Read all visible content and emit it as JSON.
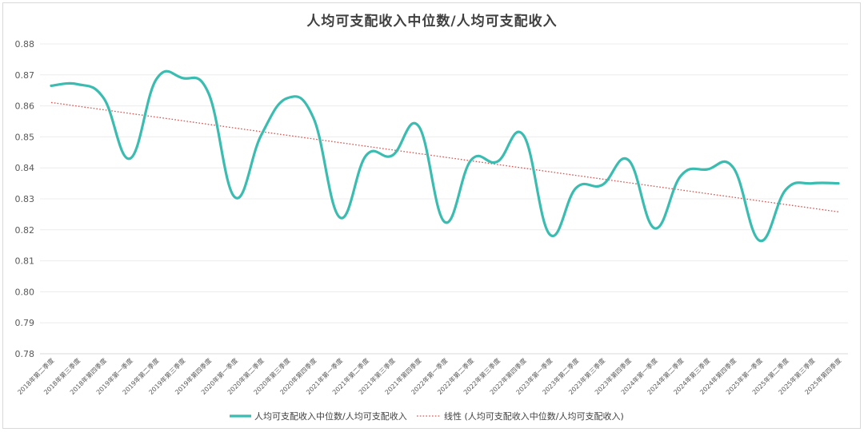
{
  "chart_data": {
    "type": "line",
    "title": "人均可支配收入中位数/人均可支配收入",
    "ylim": [
      0.78,
      0.88
    ],
    "yticks": [
      "0.88",
      "0.87",
      "0.86",
      "0.85",
      "0.84",
      "0.83",
      "0.82",
      "0.81",
      "0.80",
      "0.79",
      "0.78"
    ],
    "grid": true,
    "legend_position": "bottom",
    "x": [
      "2018年第二季度",
      "2018年第三季度",
      "2018年第四季度",
      "2019年第一季度",
      "2019年第二季度",
      "2019年第三季度",
      "2019年第四季度",
      "2020年第一季度",
      "2020年第二季度",
      "2020年第三季度",
      "2020年第四季度",
      "2021年第一季度",
      "2021年第二季度",
      "2021年第三季度",
      "2021年第四季度",
      "2022年第一季度",
      "2022年第二季度",
      "2022年第三季度",
      "2022年第四季度",
      "2023年第一季度",
      "2023年第二季度",
      "2023年第三季度",
      "2023年第四季度",
      "2024年第一季度",
      "2024年第二季度",
      "2024年第三季度",
      "2024年第四季度",
      "2025年第一季度",
      "2025年第二季度",
      "2025年第三季度",
      "2025年第四季度"
    ],
    "series": [
      {
        "name": "人均可支配收入中位数/人均可支配收入",
        "color": "#3bbcb0",
        "style": "solid-smooth",
        "values": [
          0.8665,
          0.867,
          0.8625,
          0.843,
          0.8685,
          0.869,
          0.864,
          0.8305,
          0.8505,
          0.8625,
          0.856,
          0.824,
          0.844,
          0.844,
          0.8535,
          0.8225,
          0.8425,
          0.842,
          0.8505,
          0.8185,
          0.8335,
          0.8345,
          0.8425,
          0.8205,
          0.8375,
          0.8395,
          0.84,
          0.8165,
          0.833,
          0.835,
          0.835
        ]
      },
      {
        "name": "线性 (人均可支配收入中位数/人均可支配收入)",
        "color": "#d9534f",
        "style": "dotted",
        "trend_start": 0.8611,
        "trend_end": 0.8258
      }
    ]
  }
}
